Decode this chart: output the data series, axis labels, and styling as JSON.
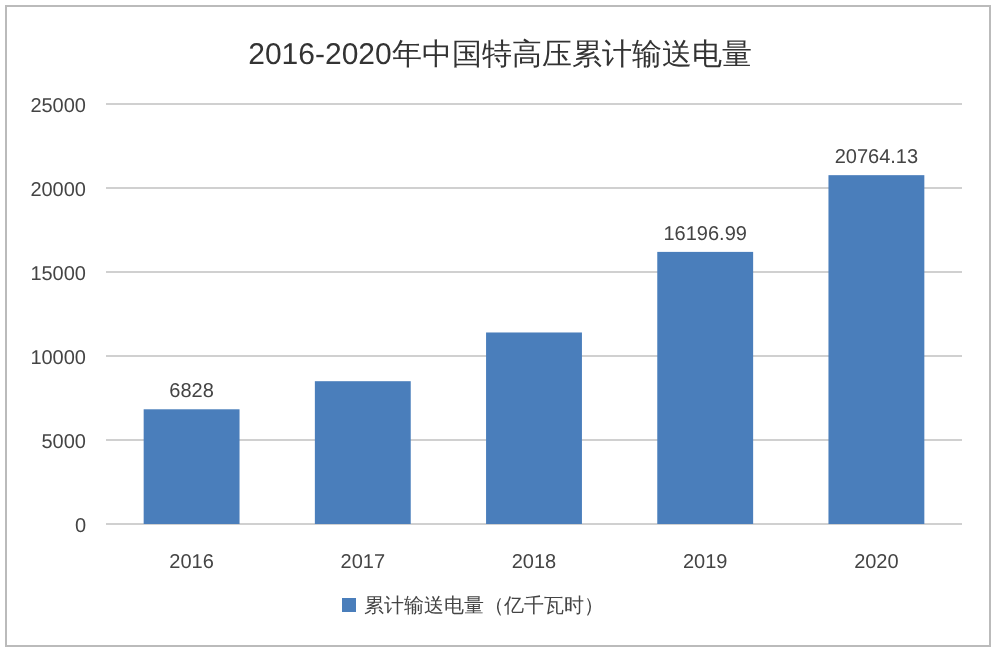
{
  "chart_data": {
    "type": "bar",
    "title": "2016-2020年中国特高压累计输送电量",
    "categories": [
      "2016",
      "2017",
      "2018",
      "2019",
      "2020"
    ],
    "series": [
      {
        "name": "累计输送电量（亿千瓦时）",
        "color": "#4a7ebb",
        "values": [
          6828,
          8500,
          11400,
          16196.99,
          20764.13
        ],
        "value_labels": [
          "6828",
          null,
          null,
          "16196.99",
          "20764.13"
        ]
      }
    ],
    "ylim": [
      0,
      25000
    ],
    "yticks": [
      0,
      5000,
      10000,
      15000,
      20000,
      25000
    ],
    "grid": "y",
    "legend": "bottom"
  }
}
